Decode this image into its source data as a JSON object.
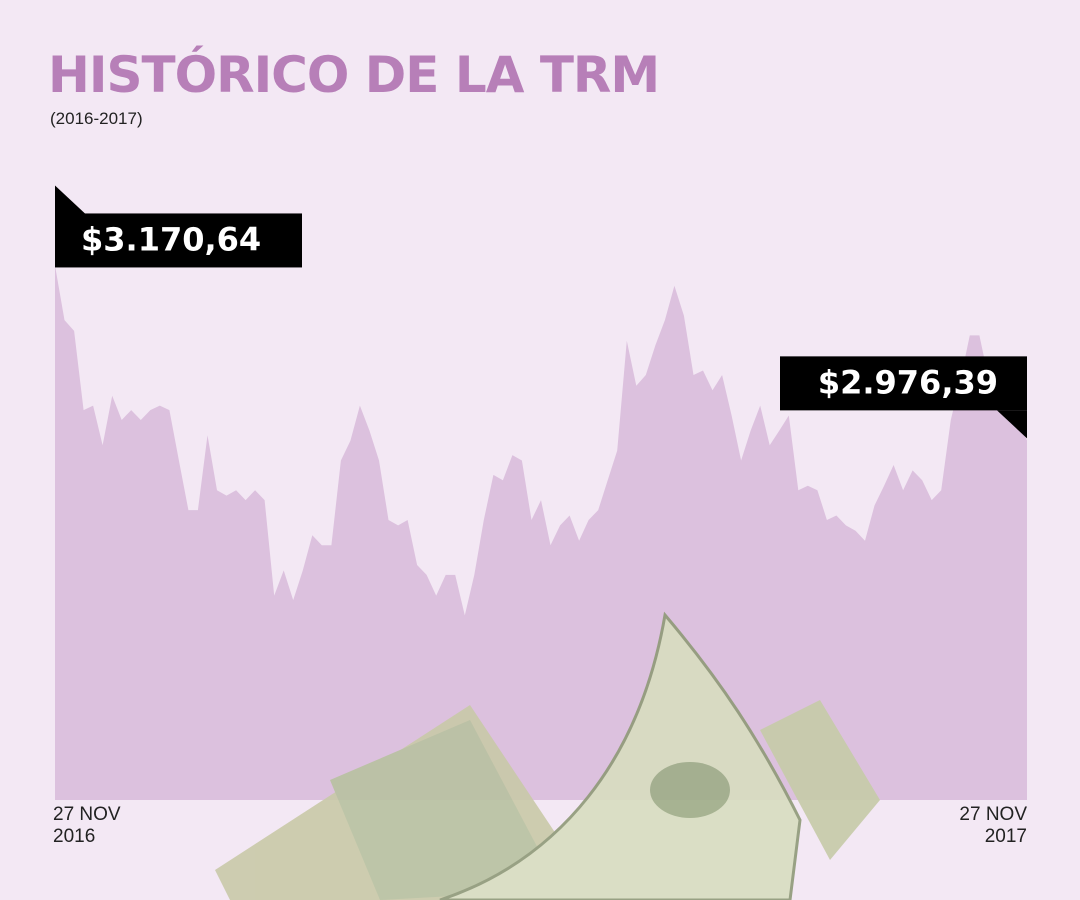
{
  "chart_data": {
    "type": "area",
    "title": "HISTÓRICO DE LA TRM",
    "subtitle": "(2016-2017)",
    "categories": [
      "27 NOV\n2016",
      null,
      null,
      null,
      null,
      null,
      null,
      null,
      null,
      null,
      null,
      null,
      null,
      null,
      null,
      null,
      null,
      null,
      null,
      null,
      null,
      null,
      null,
      null,
      null,
      null,
      null,
      null,
      null,
      null,
      null,
      null,
      null,
      null,
      null,
      null,
      null,
      null,
      null,
      null,
      null,
      null,
      null,
      null,
      null,
      null,
      null,
      null,
      null,
      null,
      null,
      null,
      null,
      null,
      null,
      null,
      null,
      null,
      null,
      null,
      null,
      null,
      null,
      null,
      null,
      null,
      null,
      null,
      null,
      null,
      null,
      null,
      null,
      null,
      null,
      null,
      null,
      null,
      null,
      null,
      null,
      null,
      null,
      null,
      null,
      null,
      null,
      null,
      null,
      null,
      null,
      null,
      null,
      null,
      null,
      null,
      null,
      null,
      null,
      null,
      null,
      null,
      "27 NOV\n2017"
    ],
    "values": [
      3170.64,
      3110,
      3098,
      3010,
      3015,
      2971,
      3026,
      2999,
      3010,
      2999,
      3010,
      3015,
      3010,
      2954,
      2899,
      2899,
      2982,
      2921,
      2915,
      2921,
      2910,
      2921,
      2910,
      2804,
      2832,
      2799,
      2832,
      2871,
      2860,
      2860,
      2954,
      2976,
      3015,
      2987,
      2954,
      2888,
      2882,
      2888,
      2838,
      2827,
      2804,
      2827,
      2827,
      2782,
      2827,
      2888,
      2938,
      2932,
      2960,
      2954,
      2888,
      2910,
      2860,
      2882,
      2893,
      2865,
      2888,
      2899,
      2932,
      2965,
      3087,
      3037,
      3049,
      3082,
      3110,
      3148,
      3115,
      3049,
      3054,
      3032,
      3049,
      3004,
      2954,
      2987,
      3015,
      2971,
      2987,
      3004,
      2921,
      2926,
      2921,
      2888,
      2893,
      2882,
      2876,
      2865,
      2904,
      2926,
      2949,
      2921,
      2943,
      2932,
      2910,
      2921,
      2999,
      3043,
      3093,
      3093,
      3043,
      3026,
      3010,
      2999,
      2976.39
    ],
    "value_labels": [
      "$3.170,64",
      null,
      null,
      null,
      null,
      null,
      null,
      null,
      null,
      null,
      null,
      null,
      null,
      null,
      null,
      null,
      null,
      null,
      null,
      null,
      null,
      null,
      null,
      null,
      null,
      null,
      null,
      null,
      null,
      null,
      null,
      null,
      null,
      null,
      null,
      null,
      null,
      null,
      null,
      null,
      null,
      null,
      null,
      null,
      null,
      null,
      null,
      null,
      null,
      null,
      null,
      null,
      null,
      null,
      null,
      null,
      null,
      null,
      null,
      null,
      null,
      null,
      null,
      null,
      null,
      null,
      null,
      null,
      null,
      null,
      null,
      null,
      null,
      null,
      null,
      null,
      null,
      null,
      null,
      null,
      null,
      null,
      null,
      null,
      null,
      null,
      null,
      null,
      null,
      null,
      null,
      null,
      null,
      null,
      null,
      null,
      null,
      null,
      null,
      null,
      null,
      null,
      "$2.976,39"
    ],
    "color": "#dcc1de",
    "ylim": [
      2577,
      3230
    ]
  }
}
